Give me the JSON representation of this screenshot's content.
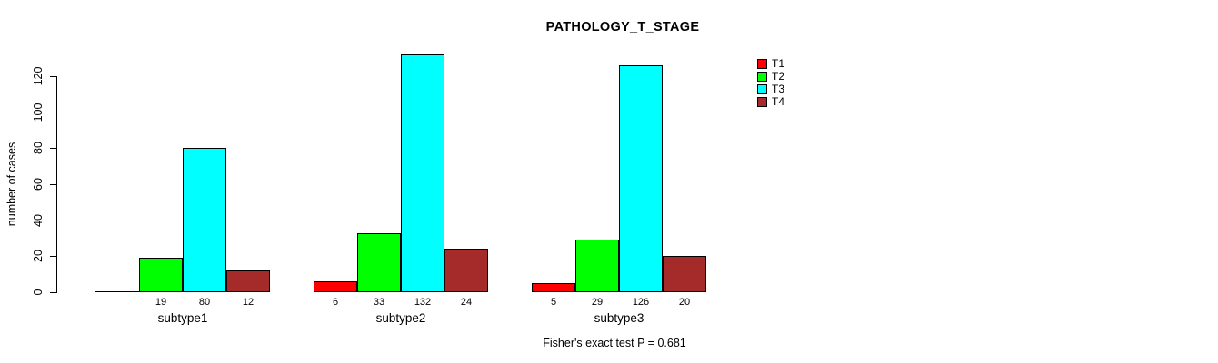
{
  "chart_data": {
    "type": "bar",
    "title": "PATHOLOGY_T_STAGE",
    "ylabel": "number of cases",
    "xlabel": "",
    "categories": [
      "subtype1",
      "subtype2",
      "subtype3"
    ],
    "series": [
      {
        "name": "T1",
        "color": "#FF0000",
        "values": [
          0,
          6,
          5
        ],
        "labels": [
          "",
          "6",
          "5"
        ]
      },
      {
        "name": "T2",
        "color": "#00FF00",
        "values": [
          19,
          33,
          29
        ],
        "labels": [
          "19",
          "33",
          "29"
        ]
      },
      {
        "name": "T3",
        "color": "#00FFFF",
        "values": [
          80,
          132,
          126
        ],
        "labels": [
          "80",
          "132",
          "126"
        ]
      },
      {
        "name": "T4",
        "color": "#A52A2A",
        "values": [
          12,
          24,
          20
        ],
        "labels": [
          "12",
          "24",
          "20"
        ]
      }
    ],
    "yticks": [
      0,
      20,
      40,
      60,
      80,
      100,
      120
    ],
    "ylim": [
      0,
      132
    ],
    "grid": false,
    "legend_position": "right",
    "bar_border_color": "#000000",
    "annotation": "Fisher's exact test P = 0.681"
  }
}
